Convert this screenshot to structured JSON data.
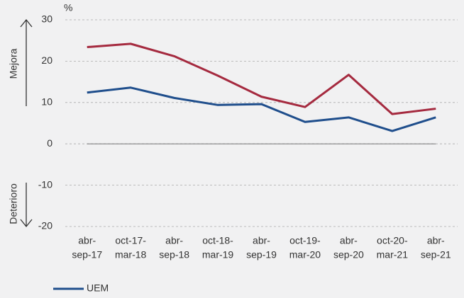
{
  "chart_data": {
    "type": "line",
    "y_unit": "%",
    "annotations": [
      "Mejora",
      "Deterioro"
    ],
    "categories": [
      [
        "abr-",
        "sep-17"
      ],
      [
        "oct-17-",
        "mar-18"
      ],
      [
        "abr-",
        "sep-18"
      ],
      [
        "oct-18-",
        "mar-19"
      ],
      [
        "abr-",
        "sep-19"
      ],
      [
        "oct-19-",
        "mar-20"
      ],
      [
        "abr-",
        "sep-20"
      ],
      [
        "oct-20-",
        "mar-21"
      ],
      [
        "abr-",
        "sep-21"
      ]
    ],
    "series": [
      {
        "name": "UEM",
        "color": "#1f4e8c",
        "values": [
          12.4,
          13.6,
          11.1,
          9.4,
          9.6,
          5.3,
          6.4,
          3.1,
          6.4
        ]
      },
      {
        "color": "#a52a3f",
        "values": [
          23.4,
          24.2,
          21.2,
          16.5,
          11.4,
          8.9,
          16.7,
          7.2,
          8.5
        ]
      }
    ],
    "ylim": [
      -20,
      30
    ],
    "yticks": [
      -20,
      -10,
      0,
      10,
      20,
      30
    ],
    "grid": true
  }
}
